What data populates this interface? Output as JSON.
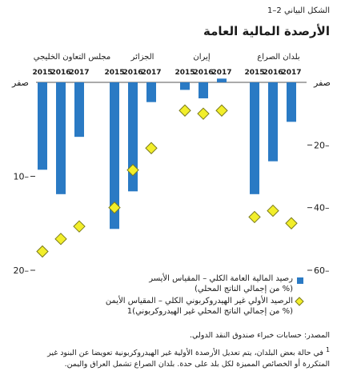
{
  "figure": {
    "label": "الشكل البياني 2–1",
    "title": "الأرصدة المالية العامة"
  },
  "legend": {
    "bar_line1": "رصيد المالية العامة الكلي – المقياس الأيسر",
    "bar_line2": "(% من إجمالي الناتج المحلي)",
    "diamond_line1": "الرصيد الأولي غير الهيدروكربوني الكلي – المقياس الأيمن",
    "diamond_line2": "(% من إجمالي الناتج المحلي غير الهيدروكربوني)1"
  },
  "notes": {
    "source": "المصدر: حسابات خبراء صندوق النقد الدولي.",
    "footnote_mark": "1",
    "footnote_line1": "في حالة بعض البلدان، يتم تعديل الأرصدة الأولية غير الهيدروكربونية تعويضا عن البنود غير",
    "footnote_line2": "المتكررة أو الخصائص المميزة لكل بلد على حدة. بلدان الصراع تشمل العراق واليمن."
  },
  "colors": {
    "bar": "#2a7ac4",
    "diamond_fill": "#f2ee2a",
    "diamond_stroke": "#7a7a1a"
  },
  "chart_data": {
    "type": "bar",
    "groups": [
      "بلدان الصراع",
      "إيران",
      "الجزائر",
      "مجلس التعاون الخليجي"
    ],
    "years": [
      "2017",
      "2016",
      "2015"
    ],
    "left_axis": {
      "ticks": [
        -20,
        -10,
        0
      ],
      "tick_labels": [
        "20–",
        "10–",
        "صفر"
      ],
      "range": [
        -20,
        0
      ]
    },
    "right_axis": {
      "ticks": [
        -60,
        -40,
        -20,
        0
      ],
      "tick_labels": [
        "60–",
        "40–",
        "20–",
        "صفر"
      ],
      "range": [
        -60,
        0
      ]
    },
    "series": [
      {
        "name": "رصيد المالية العامة الكلي (% من إجمالي الناتج المحلي)",
        "axis": "left",
        "values": [
          [
            -4.2,
            -8.4,
            -11.9
          ],
          [
            0.4,
            -1.7,
            -0.8
          ],
          [
            -2.1,
            -11.6,
            -15.6
          ],
          [
            -5.8,
            -11.9,
            -9.3
          ]
        ]
      },
      {
        "name": "الرصيد الأولي غير الهيدروكربوني الكلي (% من إجمالي الناتج المحلي غير الهيدروكربوني)",
        "axis": "right",
        "values": [
          [
            -45,
            -41,
            -43
          ],
          [
            -9,
            -10,
            -9
          ],
          [
            -21,
            -28,
            -40
          ],
          [
            -46,
            -50,
            -54
          ]
        ]
      }
    ]
  }
}
